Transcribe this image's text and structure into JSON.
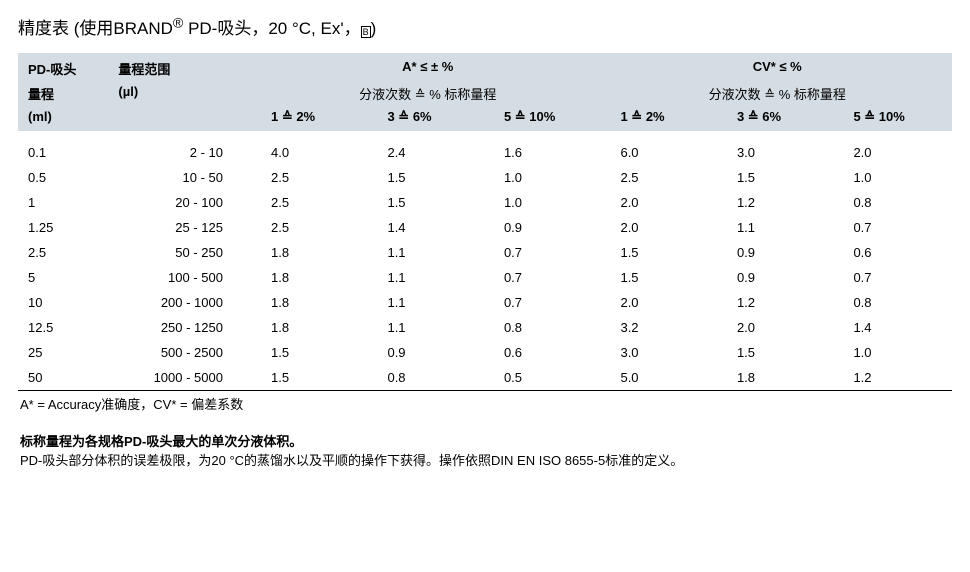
{
  "title_prefix": "精度表 (使用BRAND",
  "title_reg": "®",
  "title_suffix": " PD-吸头，20 °C, Ex'，",
  "title_close": ")",
  "header": {
    "c1_l1": "PD-吸头",
    "c1_l2": "量程",
    "c1_l3": "(ml)",
    "c2_l1": "量程范围",
    "c2_l2": "(µl)",
    "groupA": "A* ≤ ± %",
    "groupA_sub": "分液次数 ≙ % 标称量程",
    "groupCV": "CV* ≤ %",
    "groupCV_sub": "分液次数 ≙ % 标称量程",
    "sub1": "1 ≙ 2%",
    "sub2": "3 ≙ 6%",
    "sub3": "5 ≙ 10%"
  },
  "rows": [
    {
      "size": "0.1",
      "range": "2 - 10",
      "a1": "4.0",
      "a2": "2.4",
      "a3": "1.6",
      "c1": "6.0",
      "c2": "3.0",
      "c3": "2.0"
    },
    {
      "size": "0.5",
      "range": "10 - 50",
      "a1": "2.5",
      "a2": "1.5",
      "a3": "1.0",
      "c1": "2.5",
      "c2": "1.5",
      "c3": "1.0"
    },
    {
      "size": "1",
      "range": "20 - 100",
      "a1": "2.5",
      "a2": "1.5",
      "a3": "1.0",
      "c1": "2.0",
      "c2": "1.2",
      "c3": "0.8"
    },
    {
      "size": "1.25",
      "range": "25 - 125",
      "a1": "2.5",
      "a2": "1.4",
      "a3": "0.9",
      "c1": "2.0",
      "c2": "1.1",
      "c3": "0.7"
    },
    {
      "size": "2.5",
      "range": "50 - 250",
      "a1": "1.8",
      "a2": "1.1",
      "a3": "0.7",
      "c1": "1.5",
      "c2": "0.9",
      "c3": "0.6"
    },
    {
      "size": "5",
      "range": "100 - 500",
      "a1": "1.8",
      "a2": "1.1",
      "a3": "0.7",
      "c1": "1.5",
      "c2": "0.9",
      "c3": "0.7"
    },
    {
      "size": "10",
      "range": "200 - 1000",
      "a1": "1.8",
      "a2": "1.1",
      "a3": "0.7",
      "c1": "2.0",
      "c2": "1.2",
      "c3": "0.8"
    },
    {
      "size": "12.5",
      "range": "250 - 1250",
      "a1": "1.8",
      "a2": "1.1",
      "a3": "0.8",
      "c1": "3.2",
      "c2": "2.0",
      "c3": "1.4"
    },
    {
      "size": "25",
      "range": "500 - 2500",
      "a1": "1.5",
      "a2": "0.9",
      "a3": "0.6",
      "c1": "3.0",
      "c2": "1.5",
      "c3": "1.0"
    },
    {
      "size": "50",
      "range": "1000 - 5000",
      "a1": "1.5",
      "a2": "0.8",
      "a3": "0.5",
      "c1": "5.0",
      "c2": "1.8",
      "c3": "1.2"
    }
  ],
  "footnote": "A* = Accuracy准确度，CV* = 偏差系数",
  "note_bold": "标称量程为各规格PD-吸头最大的单次分液体积。",
  "note_line": "PD-吸头部分体积的误差极限，为20 °C的蒸馏水以及平顺的操作下获得。操作依照DIN EN ISO 8655-5标准的定义。"
}
